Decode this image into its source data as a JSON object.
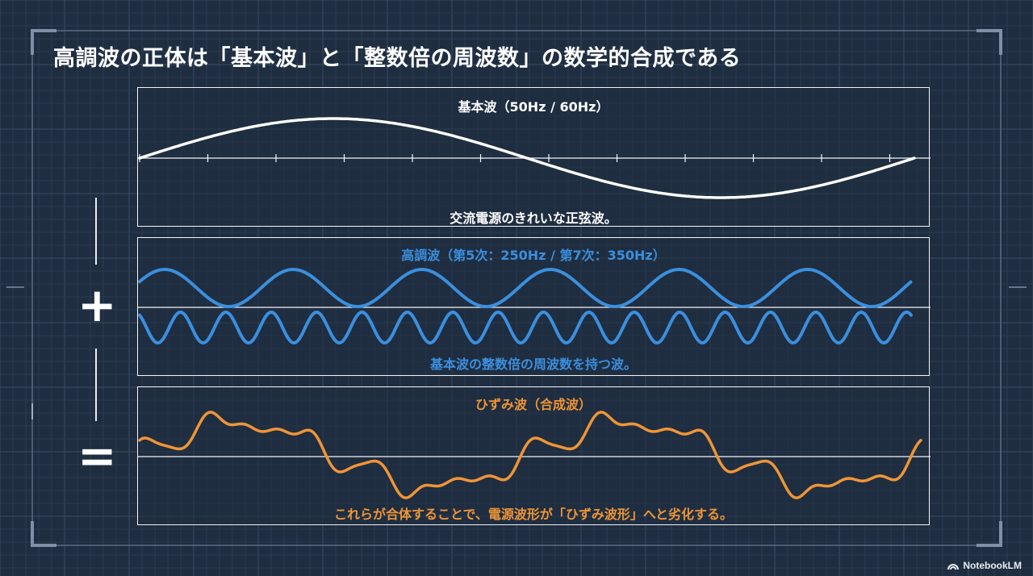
{
  "title": "高調波の正体は「基本波」と「整数倍の周波数」の数学的合成である",
  "colors": {
    "background": "#1f2d40",
    "fundamental": "#ffffff",
    "harmonic": "#3b8fde",
    "distorted": "#ef9536",
    "panel_border": "#f2f4f8"
  },
  "panels": {
    "fundamental": {
      "heading": "基本波（50Hz / 60Hz）",
      "caption": "交流電源のきれいな正弦波。"
    },
    "harmonics": {
      "heading": "高調波（第5次：250Hz / 第7次：350Hz）",
      "caption": "基本波の整数倍の周波数を持つ波。"
    },
    "distorted": {
      "heading": "ひずみ波（合成波）",
      "caption": "これらが合体することで、電源波形が「ひずみ波形」へと劣化する。"
    }
  },
  "operators": {
    "plus": "+",
    "equals": "="
  },
  "watermark": "NotebookLM"
}
